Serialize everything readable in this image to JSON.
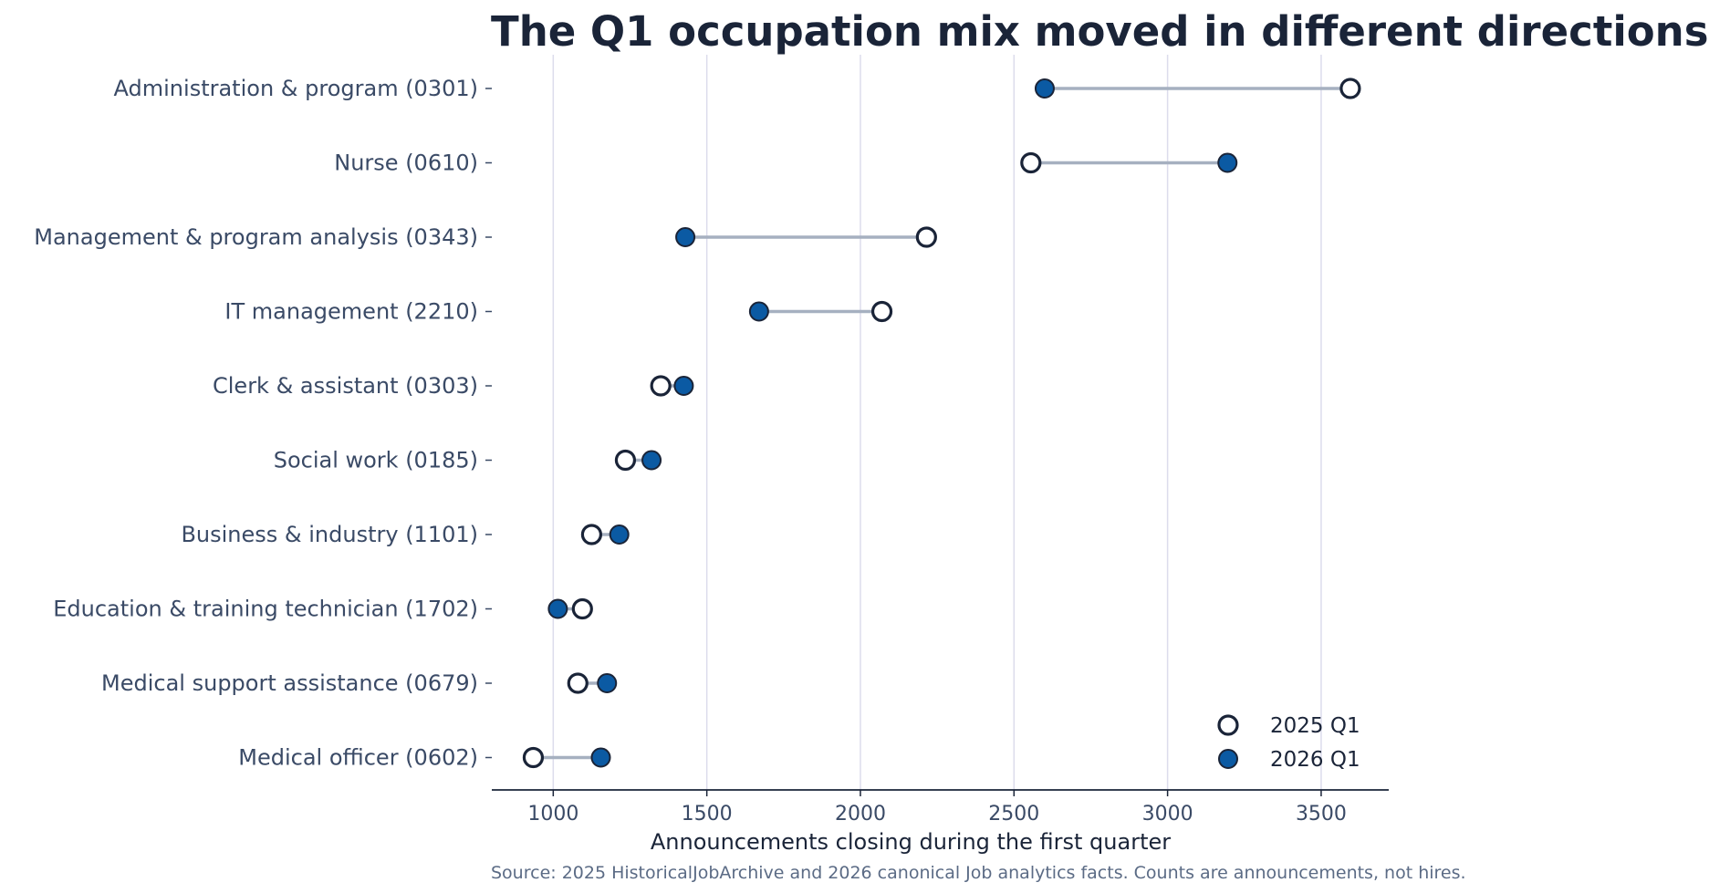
{
  "chart_data": {
    "type": "dumbbell",
    "title": "The Q1 occupation mix moved in different directions",
    "xlabel": "Announcements closing during the first quarter",
    "ylabel": "",
    "source": "Source: 2025 HistoricalJobArchive and 2026 canonical Job analytics facts. Counts are announcements, not hires.",
    "xlim": [
      800,
      3720
    ],
    "xticks": [
      1000,
      1500,
      2000,
      2500,
      3000,
      3500
    ],
    "grid": "vertical",
    "legend_position": "bottom-right",
    "categories": [
      "Administration & program (0301)",
      "Nurse (0610)",
      "Management & program analysis (0343)",
      "IT management (2210)",
      "Clerk & assistant (0303)",
      "Social work (0185)",
      "Business & industry (1101)",
      "Education & training technician (1702)",
      "Medical support assistance (0679)",
      "Medical officer (0602)"
    ],
    "series": [
      {
        "name": "2025 Q1",
        "style": "hollow",
        "color": "#1a2438",
        "values": [
          3595,
          2555,
          2215,
          2070,
          1350,
          1235,
          1125,
          1095,
          1080,
          935
        ]
      },
      {
        "name": "2026 Q1",
        "style": "filled",
        "color": "#0b5aa3",
        "values": [
          2600,
          3195,
          1430,
          1670,
          1425,
          1320,
          1215,
          1015,
          1175,
          1155
        ]
      }
    ],
    "colors": {
      "connector": "#a6b0c0",
      "grid": "#dcdcec",
      "axis": "#1a2438"
    }
  }
}
